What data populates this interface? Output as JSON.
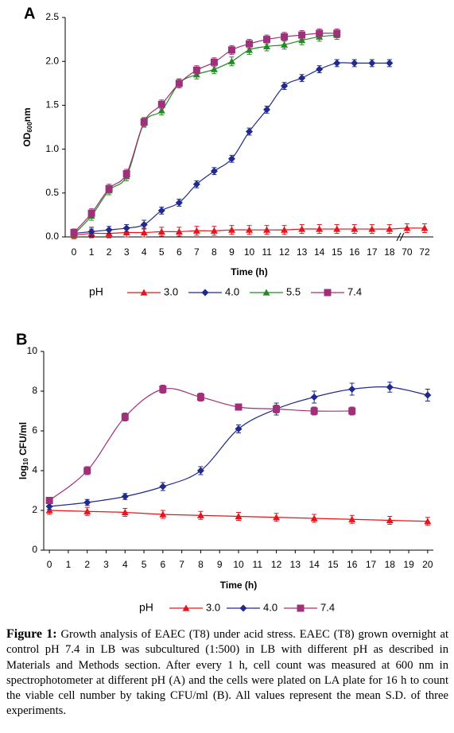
{
  "chart_data": [
    {
      "type": "line",
      "panel": "A",
      "xlabel": "Time (h)",
      "ylabel_parts": [
        "OD",
        "600",
        "nm"
      ],
      "legend_title": "pH",
      "categories": [
        "0",
        "1",
        "2",
        "3",
        "4",
        "5",
        "6",
        "7",
        "8",
        "9",
        "10",
        "11",
        "12",
        "13",
        "14",
        "15",
        "16",
        "17",
        "18",
        "70",
        "72"
      ],
      "ylim": [
        0,
        2.5
      ],
      "yticks": [
        {
          "value": 0,
          "label": "0.0"
        },
        0.5,
        {
          "value": 1,
          "label": "1.0"
        },
        1.5,
        {
          "value": 2,
          "label": "2.0"
        },
        2.5
      ],
      "series": [
        {
          "name": "3.0",
          "color": "#e8141b",
          "marker": "triangle",
          "values": [
            0.02,
            0.04,
            0.04,
            0.05,
            0.05,
            0.06,
            0.06,
            0.07,
            0.07,
            0.08,
            0.08,
            0.08,
            0.08,
            0.09,
            0.09,
            0.09,
            0.09,
            0.09,
            0.09,
            0.1,
            0.1
          ],
          "errors": [
            0.04,
            0.05,
            0.05,
            0.05,
            0.05,
            0.05,
            0.05,
            0.05,
            0.05,
            0.05,
            0.05,
            0.05,
            0.05,
            0.05,
            0.05,
            0.05,
            0.05,
            0.05,
            0.05,
            0.05,
            0.05
          ]
        },
        {
          "name": "4.0",
          "color": "#1f2a8c",
          "marker": "diamond",
          "values": [
            0.04,
            0.06,
            0.08,
            0.1,
            0.14,
            0.3,
            0.39,
            0.6,
            0.75,
            0.89,
            1.2,
            1.45,
            1.72,
            1.81,
            1.91,
            1.98,
            1.98,
            1.98,
            1.98,
            null,
            null
          ],
          "errors": [
            0.05,
            0.05,
            0.04,
            0.04,
            0.05,
            0.04,
            0.04,
            0.04,
            0.04,
            0.04,
            0.04,
            0.04,
            0.04,
            0.04,
            0.04,
            0.04,
            0.04,
            0.04,
            0.04,
            null,
            null
          ]
        },
        {
          "name": "5.5",
          "color": "#1e8c1e",
          "marker": "triangle",
          "values": [
            0.03,
            0.24,
            0.53,
            0.69,
            1.3,
            1.44,
            1.75,
            1.85,
            1.91,
            2.0,
            2.13,
            2.17,
            2.19,
            2.24,
            2.28,
            2.3,
            null,
            null,
            null,
            null,
            null
          ],
          "errors": [
            0.04,
            0.05,
            0.05,
            0.05,
            0.05,
            0.05,
            0.05,
            0.05,
            0.05,
            0.05,
            0.05,
            0.05,
            0.05,
            0.05,
            0.05,
            0.05,
            null,
            null,
            null,
            null,
            null
          ]
        },
        {
          "name": "7.4",
          "color": "#a0307a",
          "marker": "square",
          "values": [
            0.05,
            0.27,
            0.55,
            0.72,
            1.31,
            1.51,
            1.75,
            1.9,
            1.99,
            2.13,
            2.2,
            2.25,
            2.28,
            2.3,
            2.32,
            2.32,
            null,
            null,
            null,
            null,
            null
          ],
          "errors": [
            0.04,
            0.05,
            0.05,
            0.05,
            0.05,
            0.05,
            0.05,
            0.05,
            0.05,
            0.05,
            0.05,
            0.05,
            0.05,
            0.05,
            0.05,
            0.05,
            null,
            null,
            null,
            null,
            null
          ]
        }
      ]
    },
    {
      "type": "line",
      "panel": "B",
      "xlabel": "Time (h)",
      "ylabel_parts": [
        "log",
        "10",
        " CFU/ml"
      ],
      "legend_title": "pH",
      "xlim": [
        -0.3,
        20.3
      ],
      "xticks": [
        0,
        1,
        2,
        3,
        4,
        5,
        6,
        7,
        8,
        9,
        10,
        11,
        12,
        13,
        14,
        15,
        16,
        17,
        18,
        19,
        20
      ],
      "ylim": [
        0,
        10
      ],
      "yticks": [
        0,
        2,
        4,
        6,
        8,
        10
      ],
      "series": [
        {
          "name": "3.0",
          "color": "#e8141b",
          "marker": "triangle",
          "x": [
            0,
            2,
            4,
            6,
            8,
            10,
            12,
            14,
            16,
            18,
            20
          ],
          "values": [
            2.0,
            1.95,
            1.9,
            1.8,
            1.75,
            1.7,
            1.65,
            1.6,
            1.55,
            1.5,
            1.45
          ],
          "errors": [
            0.2,
            0.2,
            0.2,
            0.2,
            0.2,
            0.2,
            0.2,
            0.2,
            0.2,
            0.2,
            0.2
          ]
        },
        {
          "name": "4.0",
          "color": "#1f2a8c",
          "marker": "diamond",
          "x": [
            0,
            2,
            4,
            6,
            8,
            10,
            12,
            14,
            16,
            18,
            20
          ],
          "values": [
            2.2,
            2.4,
            2.7,
            3.2,
            4.0,
            6.1,
            7.1,
            7.7,
            8.1,
            8.2,
            7.8
          ],
          "errors": [
            0.15,
            0.15,
            0.15,
            0.2,
            0.2,
            0.2,
            0.3,
            0.3,
            0.3,
            0.25,
            0.3
          ]
        },
        {
          "name": "7.4",
          "color": "#a0307a",
          "marker": "square",
          "x": [
            0,
            2,
            4,
            6,
            8,
            10,
            12,
            14,
            16
          ],
          "values": [
            2.5,
            4.0,
            6.7,
            8.1,
            7.7,
            7.2,
            7.1,
            7.0,
            7.0
          ],
          "errors": [
            0.15,
            0.2,
            0.2,
            0.2,
            0.2,
            0.15,
            0.2,
            0.2,
            0.2
          ]
        }
      ]
    }
  ],
  "caption": {
    "label": "Figure 1:",
    "text": " Growth analysis of EAEC (T8) under acid stress. EAEC (T8) grown overnight at control pH 7.4 in LB was subcultured (1:500) in LB with different pH as described in Materials and Methods section. After every 1 h, cell count was measured at 600 nm in spectrophotometer at different pH (A) and the cells were plated on LA plate for 16 h to count the viable cell number by taking CFU/ml (B). All values represent the mean S.D. of three experiments."
  }
}
